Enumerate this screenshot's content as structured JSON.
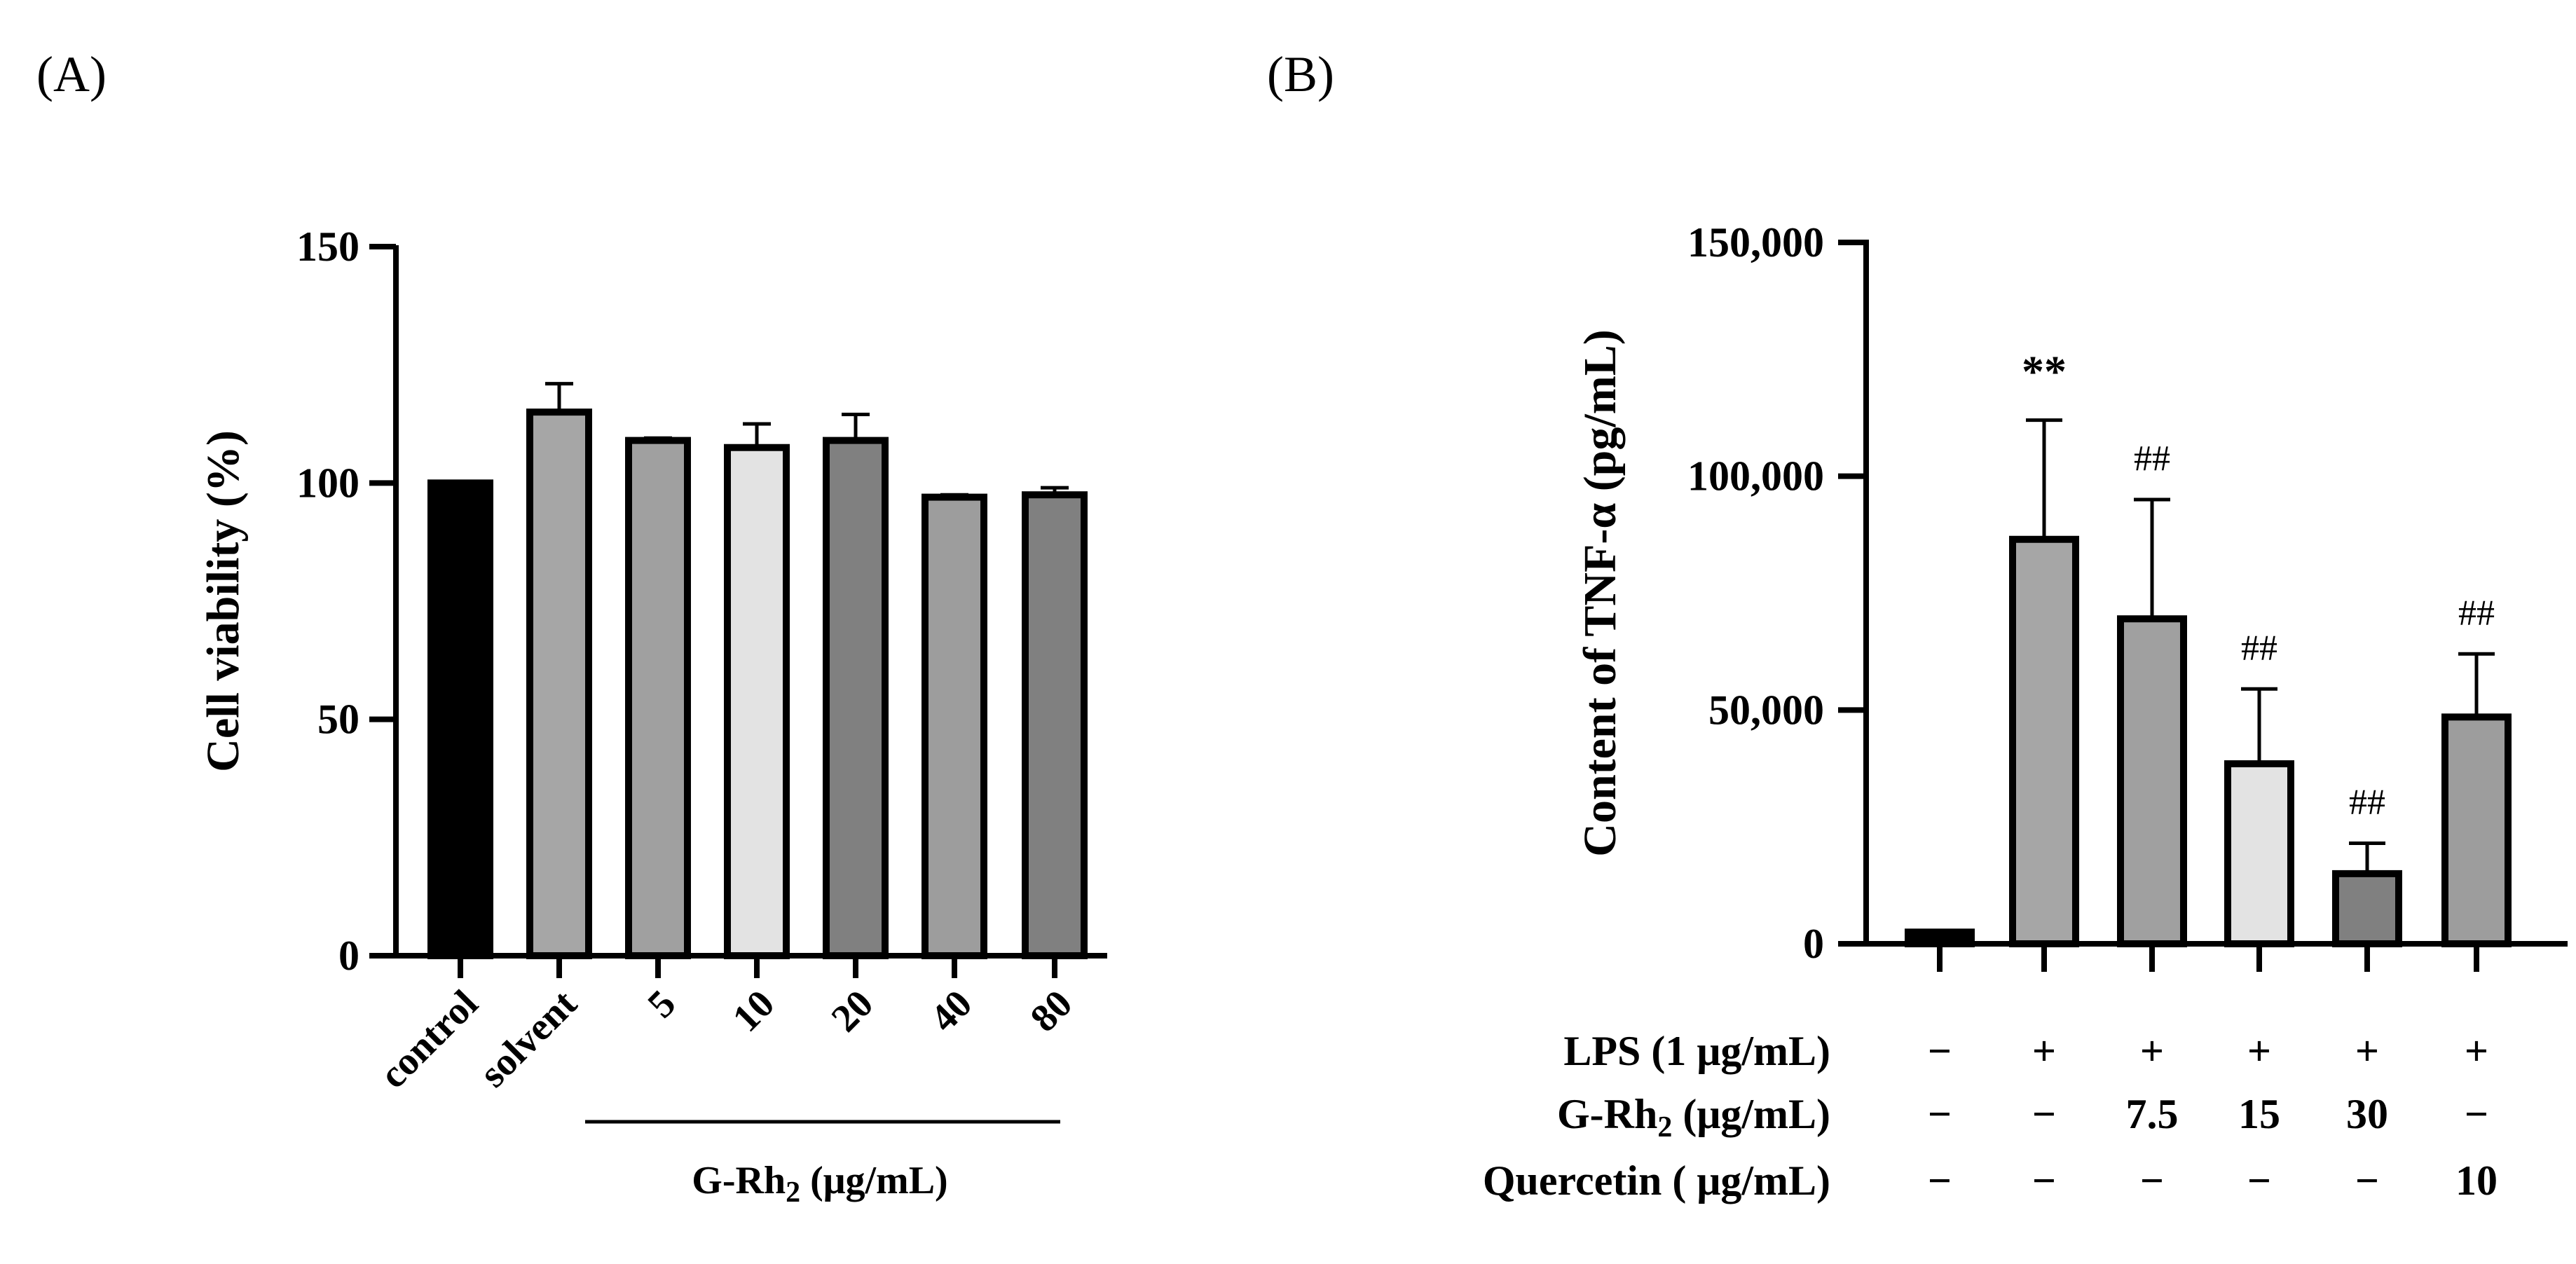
{
  "panels": {
    "a": "(A)",
    "b": "(B)"
  },
  "chart_data": [
    {
      "type": "bar",
      "panel": "A",
      "ylabel": "Cell viability (%)",
      "ylim": [
        0,
        150
      ],
      "yticks": [
        0,
        50,
        100,
        150
      ],
      "ytick_labels": [
        "0",
        "50",
        "100",
        "150"
      ],
      "categories": [
        "control",
        "solvent",
        "5",
        "10",
        "20",
        "40",
        "80"
      ],
      "values": [
        100,
        115,
        109,
        107.5,
        109,
        97,
        97.5
      ],
      "errors": [
        0,
        6,
        0.5,
        5,
        5.5,
        0.5,
        1.5
      ],
      "colors": [
        "#000000",
        "#a6a6a6",
        "#a0a0a0",
        "#e3e3e3",
        "#808080",
        "#9d9d9d",
        "#808080"
      ],
      "group_label": {
        "main": "G-Rh",
        "sub": "2",
        "unit": " (μg/mL)"
      }
    },
    {
      "type": "bar",
      "panel": "B",
      "ylabel": "Content of TNF-α (pg/mL)",
      "ylim": [
        0,
        150000
      ],
      "yticks": [
        0,
        50000,
        100000,
        150000
      ],
      "ytick_labels": [
        "0",
        "50,000",
        "100,000",
        "150,000"
      ],
      "values": [
        2500,
        86500,
        69500,
        38500,
        15000,
        48500
      ],
      "errors": [
        0,
        25500,
        25500,
        16000,
        6500,
        13500
      ],
      "colors": [
        "#000000",
        "#a6a6a6",
        "#a0a0a0",
        "#e3e3e3",
        "#808080",
        "#9d9d9d"
      ],
      "annotations": [
        "",
        "**",
        "##",
        "##",
        "##",
        "##"
      ],
      "conditions": [
        {
          "label": "LPS (1  μg/mL)",
          "values": [
            "−",
            "+",
            "+",
            "+",
            "+",
            "+"
          ]
        },
        {
          "label": "G-Rh",
          "sub": "2",
          "unit": " (μg/mL)",
          "values": [
            "−",
            "−",
            "7.5",
            "15",
            "30",
            "−"
          ]
        },
        {
          "label": "Quercetin ( μg/mL)",
          "values": [
            "−",
            "−",
            "−",
            "−",
            "−",
            "10"
          ]
        }
      ]
    }
  ]
}
